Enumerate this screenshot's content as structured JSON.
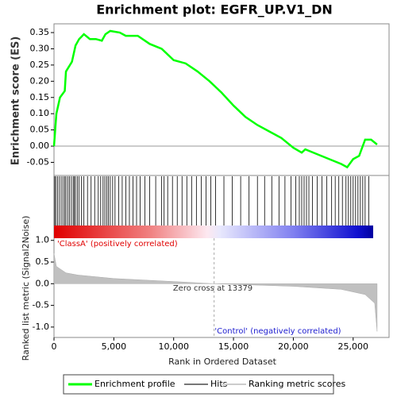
{
  "chart_data": [
    {
      "type": "line",
      "title": "Enrichment plot: EGFR_UP.V1_DN",
      "ylabel": "Enrichment score (ES)",
      "color": "#00ff00",
      "x": [
        0,
        200,
        500,
        900,
        1000,
        1500,
        1800,
        2100,
        2500,
        3000,
        3500,
        4000,
        4300,
        4700,
        5500,
        6000,
        7000,
        8000,
        9000,
        10000,
        11000,
        12000,
        13000,
        14000,
        15000,
        16000,
        17000,
        18000,
        19000,
        20000,
        20700,
        21000,
        22000,
        23000,
        24000,
        24500,
        25000,
        25500,
        26000,
        26500,
        27000
      ],
      "values": [
        0,
        0.1,
        0.15,
        0.17,
        0.23,
        0.26,
        0.31,
        0.33,
        0.345,
        0.33,
        0.33,
        0.325,
        0.345,
        0.355,
        0.35,
        0.34,
        0.34,
        0.315,
        0.3,
        0.265,
        0.255,
        0.23,
        0.2,
        0.165,
        0.125,
        0.09,
        0.065,
        0.045,
        0.025,
        -0.005,
        -0.02,
        -0.01,
        -0.025,
        -0.04,
        -0.055,
        -0.065,
        -0.04,
        -0.03,
        0.02,
        0.02,
        0.005
      ],
      "xlim": [
        0,
        28000
      ],
      "ylim": [
        -0.088,
        0.377
      ],
      "yticks": [
        -0.05,
        {
          "value": 0,
          "label": "0.00"
        },
        0.05,
        {
          "value": 0.1,
          "label": "0.10"
        },
        0.15,
        {
          "value": 0.2,
          "label": "0.20"
        },
        0.25,
        {
          "value": 0.3,
          "label": "0.30"
        },
        0.35
      ]
    },
    {
      "type": "hits",
      "xlim": [
        0,
        28000
      ],
      "x": [
        60,
        150,
        300,
        450,
        600,
        750,
        900,
        1000,
        1150,
        1300,
        1450,
        1600,
        1700,
        1800,
        1950,
        2100,
        2300,
        2500,
        2800,
        3100,
        3400,
        3700,
        3900,
        4100,
        4250,
        4400,
        4550,
        4700,
        4900,
        5100,
        5400,
        5700,
        6000,
        6300,
        6600,
        6900,
        7200,
        7600,
        8000,
        8500,
        9000,
        9200,
        9500,
        9900,
        10300,
        10700,
        11100,
        11500,
        11900,
        12300,
        12700,
        13100,
        13500,
        14200,
        14900,
        15600,
        16300,
        17000,
        17600,
        18200,
        18800,
        19300,
        19800,
        20200,
        20500,
        20700,
        20900,
        21100,
        21300,
        21600,
        22000,
        22400,
        22800,
        23200,
        23500,
        23800,
        24100,
        24400,
        24600,
        24800,
        25000,
        25200,
        25400,
        25600,
        25800,
        26000,
        26300
      ]
    },
    {
      "type": "area",
      "ylabel": "Ranked list metric (Signal2Noise)",
      "xlabel": "Rank in Ordered Dataset",
      "color": "#c0c0c0",
      "x": [
        0,
        200,
        1000,
        2000,
        5000,
        10000,
        13379,
        20000,
        24000,
        26000,
        26800,
        27000
      ],
      "values": [
        0.7,
        0.4,
        0.25,
        0.2,
        0.12,
        0.05,
        0,
        -0.06,
        -0.13,
        -0.25,
        -0.45,
        -1.1
      ],
      "xlim": [
        0,
        28000
      ],
      "ylim": [
        -1.24,
        1.05
      ],
      "xticks": [
        0,
        {
          "value": 5000,
          "label": "5,000"
        },
        {
          "value": 10000,
          "label": "10,000"
        },
        {
          "value": 15000,
          "label": "15,000"
        },
        {
          "value": 20000,
          "label": "20,000"
        },
        {
          "value": 25000,
          "label": "25,000"
        }
      ],
      "yticks": [
        {
          "value": 1,
          "label": "1.0"
        },
        0.5,
        {
          "value": 0,
          "label": "0.0"
        },
        -0.5,
        {
          "value": -1,
          "label": "-1.0"
        }
      ],
      "zero_cross": 13379,
      "annotations": [
        "'ClassA' (positively correlated)",
        "Zero cross at 13379",
        "'Control' (negatively correlated)"
      ]
    }
  ],
  "legend": [
    "Enrichment profile",
    "Hits",
    "Ranking metric scores"
  ]
}
